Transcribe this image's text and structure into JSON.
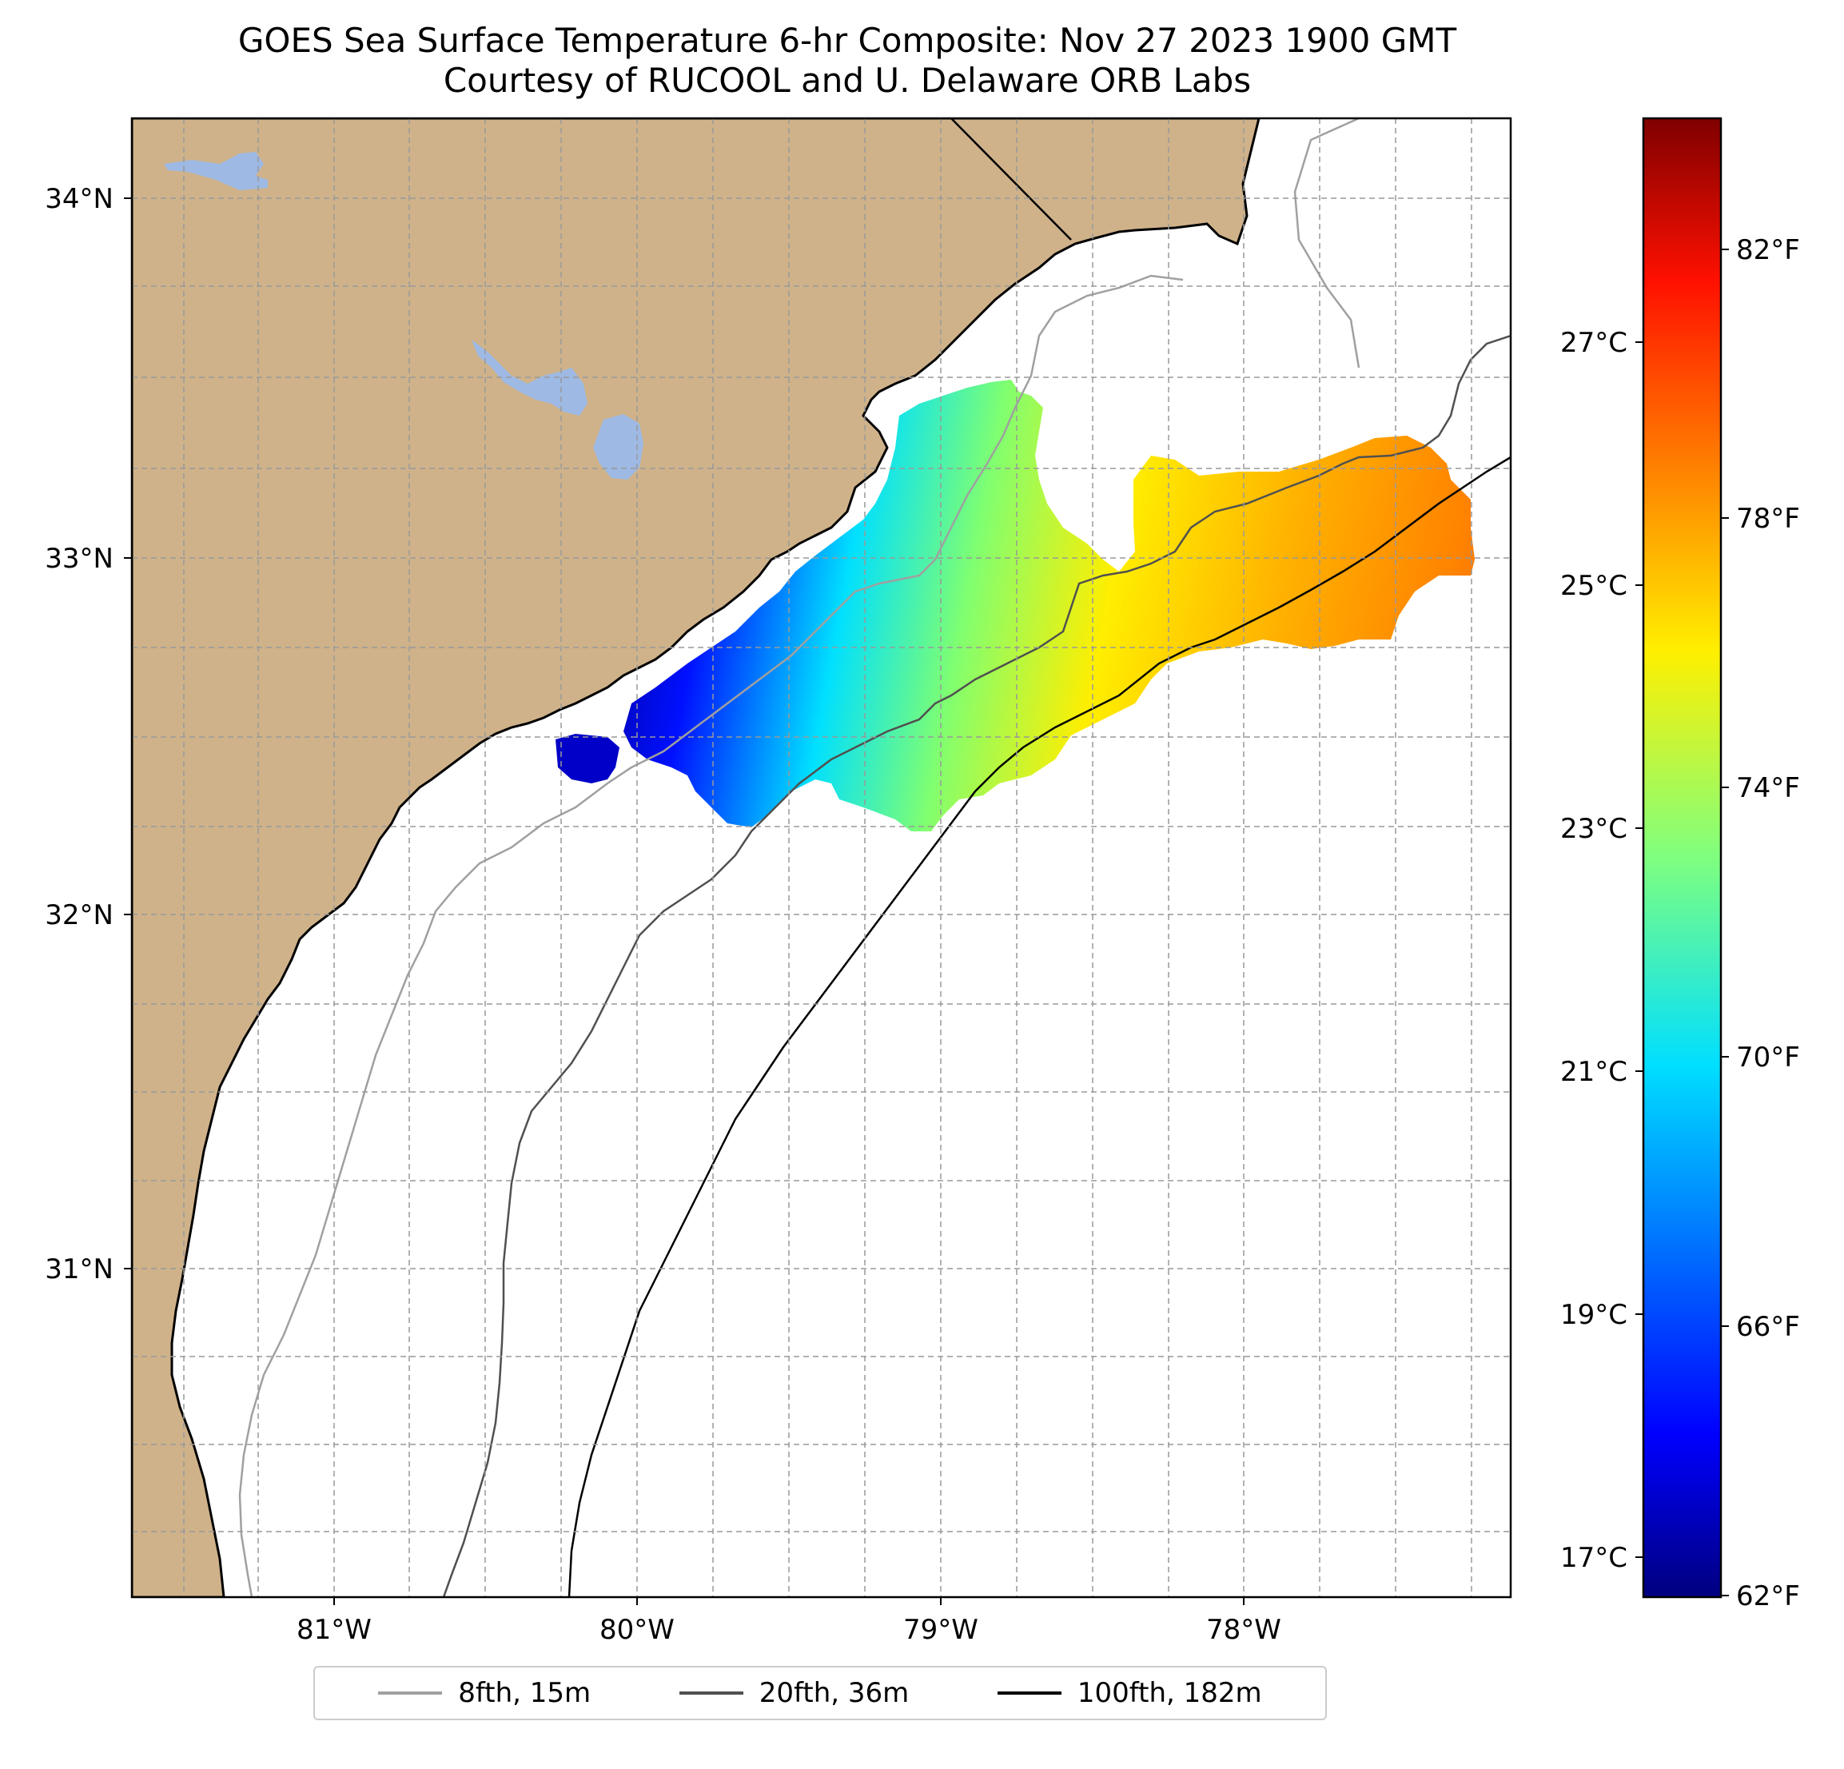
{
  "title": {
    "line1": "GOES Sea Surface Temperature 6-hr Composite: Nov 27 2023 1900 GMT",
    "line2": "Courtesy of RUCOOL and U. Delaware ORB Labs"
  },
  "map": {
    "lat_labels": [
      "34°N",
      "33°N",
      "32°N",
      "31°N"
    ],
    "lon_labels": [
      "81°W",
      "80°W",
      "79°W",
      "78°W"
    ],
    "land_color": "#cfb28a",
    "water_color": "#9db9e4",
    "ocean_color": "#ffffff"
  },
  "colorbar": {
    "celsius_labels": [
      "27°C",
      "25°C",
      "23°C",
      "21°C",
      "19°C",
      "17°C"
    ],
    "fahrenheit_labels": [
      "82°F",
      "78°F",
      "74°F",
      "70°F",
      "66°F",
      "62°F"
    ],
    "colormap": "jet",
    "colors": [
      "#00007f",
      "#0000ff",
      "#007fff",
      "#00ffff",
      "#7fff7f",
      "#ffff00",
      "#ff7f00",
      "#ff0000",
      "#7f0000"
    ]
  },
  "legend": {
    "items": [
      {
        "label": "8fth, 15m",
        "color": "#a0a0a0"
      },
      {
        "label": "20fth, 36m",
        "color": "#505050"
      },
      {
        "label": "100fth, 182m",
        "color": "#000000"
      }
    ]
  }
}
